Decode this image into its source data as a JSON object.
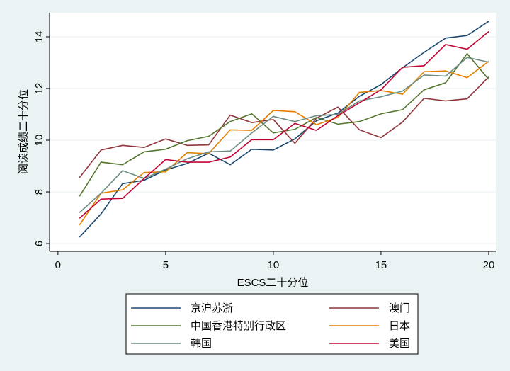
{
  "chart_data": {
    "type": "line",
    "x_label": "ESCS二十分位",
    "y_label": "阅读成绩二十分位",
    "x": [
      1,
      2,
      3,
      4,
      5,
      6,
      7,
      8,
      9,
      10,
      11,
      12,
      13,
      14,
      15,
      16,
      17,
      18,
      19,
      20
    ],
    "xlim": [
      -0.39,
      20.33
    ],
    "xticks": [
      0,
      5,
      10,
      15,
      20
    ],
    "ylim": [
      5.7,
      14.93
    ],
    "yticks": [
      6,
      8,
      10,
      12,
      14
    ],
    "grid": true,
    "legend": "bottom",
    "series": [
      {
        "name": "京沪苏浙",
        "color": "#1a476f",
        "values": [
          6.25,
          7.15,
          8.32,
          8.45,
          8.85,
          9.1,
          9.5,
          9.05,
          9.65,
          9.62,
          10.05,
          10.75,
          11.05,
          11.7,
          12.15,
          12.8,
          13.4,
          13.95,
          14.05,
          14.6
        ]
      },
      {
        "name": "澳门",
        "color": "#90353b",
        "values": [
          8.55,
          9.62,
          9.8,
          9.72,
          10.05,
          9.8,
          9.82,
          10.97,
          10.68,
          10.8,
          9.88,
          10.85,
          11.28,
          10.4,
          10.1,
          10.7,
          11.62,
          11.52,
          11.6,
          12.45
        ]
      },
      {
        "name": "中国香港特别行政区",
        "color": "#55752f",
        "values": [
          7.83,
          9.15,
          9.05,
          9.55,
          9.65,
          9.98,
          10.15,
          10.72,
          11.02,
          10.28,
          10.42,
          10.88,
          10.62,
          10.72,
          11.02,
          11.18,
          11.95,
          12.22,
          13.35,
          12.35
        ]
      },
      {
        "name": "日本",
        "color": "#e37e00",
        "values": [
          6.72,
          7.95,
          8.08,
          8.75,
          8.78,
          9.52,
          9.48,
          10.4,
          10.38,
          11.15,
          11.1,
          10.6,
          10.88,
          11.85,
          11.92,
          11.78,
          12.65,
          12.68,
          12.42,
          13.05
        ]
      },
      {
        "name": "韩国",
        "color": "#6e8e84",
        "values": [
          7.2,
          7.95,
          8.82,
          8.52,
          8.88,
          9.28,
          9.55,
          9.58,
          10.28,
          10.92,
          10.72,
          10.95,
          11.0,
          11.52,
          11.68,
          11.9,
          12.52,
          12.48,
          13.2,
          13.02
        ]
      },
      {
        "name": "美国",
        "color": "#c10534",
        "values": [
          6.98,
          7.72,
          7.75,
          8.52,
          9.25,
          9.15,
          9.15,
          9.35,
          10.02,
          10.02,
          10.65,
          10.38,
          10.95,
          11.45,
          11.95,
          12.82,
          12.88,
          13.7,
          13.52,
          14.2
        ]
      }
    ]
  }
}
